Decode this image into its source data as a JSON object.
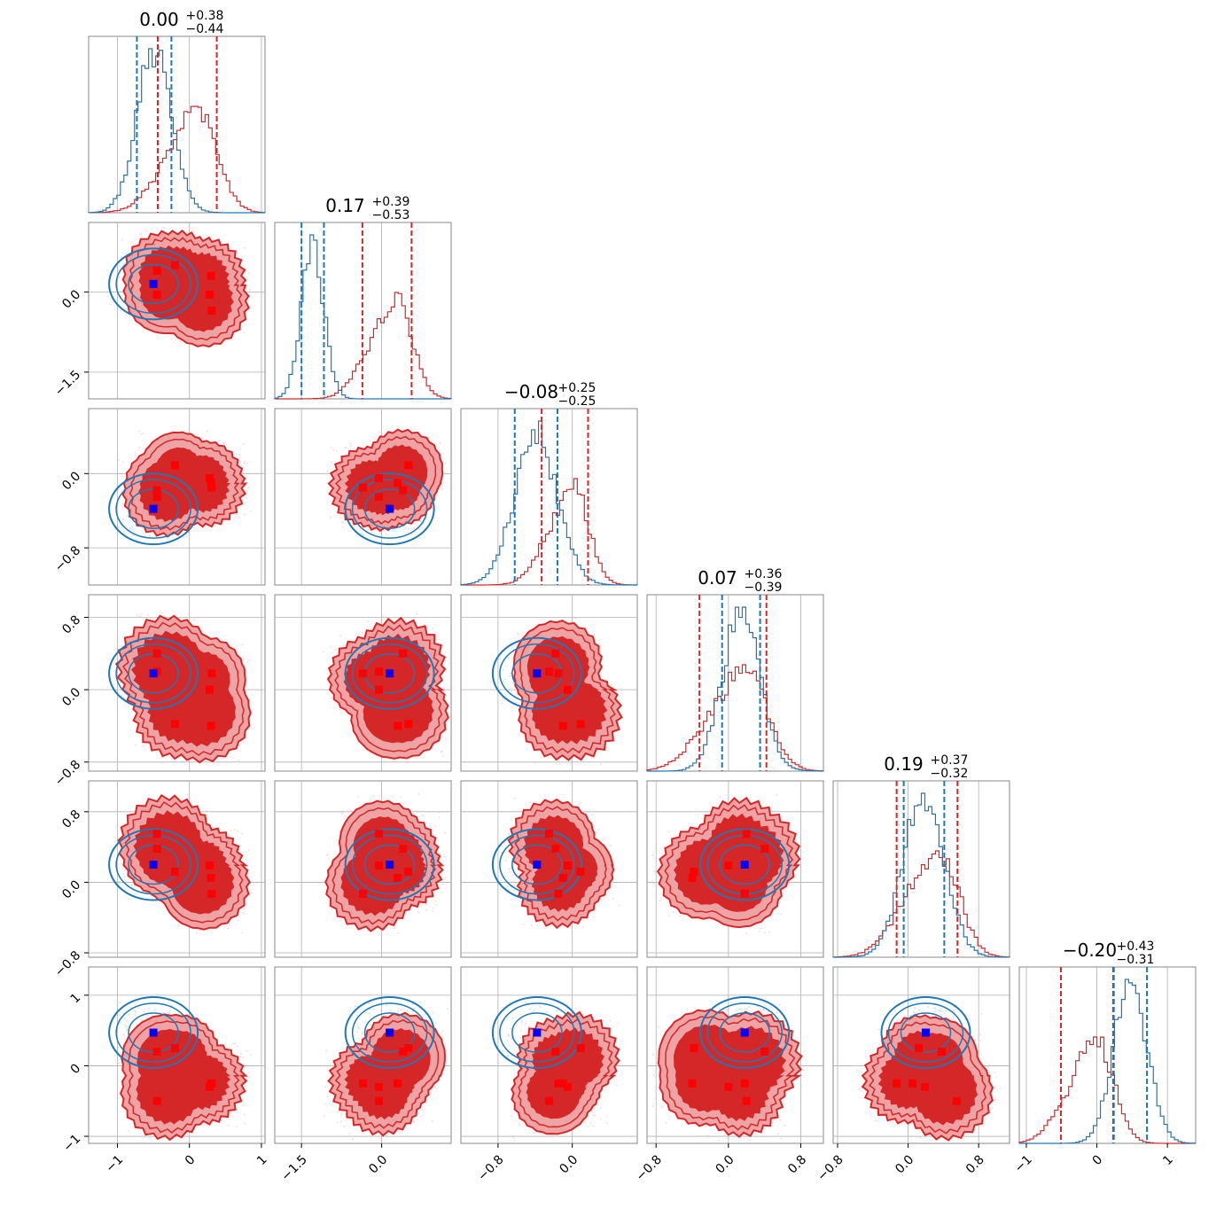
{
  "chart_data": {
    "type": "corner",
    "parameters": [
      {
        "title_main": "0.00",
        "title_plus": "+0.38",
        "title_minus": "−0.44",
        "range": [
          -1.4,
          1.05
        ],
        "ticks": [
          -1,
          0,
          1
        ],
        "tick_labels": [
          "−1",
          "0",
          "1"
        ],
        "red_quantiles": [
          -0.44,
          0.38
        ],
        "blue_quantiles": [
          -0.73,
          -0.25
        ]
      },
      {
        "title_main": "0.17",
        "title_plus": "+0.39",
        "title_minus": "−0.53",
        "range": [
          -2.0,
          1.3
        ],
        "ticks": [
          -1.5,
          0.0
        ],
        "tick_labels": [
          "−1.5",
          "0.0"
        ],
        "red_quantiles": [
          -0.36,
          0.56
        ],
        "blue_quantiles": [
          -1.5,
          -1.08
        ]
      },
      {
        "title_main": "−0.08",
        "title_plus": "+0.25",
        "title_minus": "−0.25",
        "range": [
          -1.2,
          0.7
        ],
        "ticks": [
          -0.8,
          0.0
        ],
        "tick_labels": [
          "−0.8",
          "0.0"
        ],
        "red_quantiles": [
          -0.33,
          0.17
        ],
        "blue_quantiles": [
          -0.62,
          -0.16
        ]
      },
      {
        "title_main": "0.07",
        "title_plus": "+0.36",
        "title_minus": "−0.39",
        "range": [
          -0.9,
          1.05
        ],
        "ticks": [
          -0.8,
          0.0,
          0.8
        ],
        "tick_labels": [
          "−0.8",
          "0.0",
          "0.8"
        ],
        "red_quantiles": [
          -0.32,
          0.42
        ],
        "blue_quantiles": [
          -0.07,
          0.35
        ]
      },
      {
        "title_main": "0.19",
        "title_plus": "+0.37",
        "title_minus": "−0.32",
        "range": [
          -0.85,
          1.15
        ],
        "ticks": [
          -0.8,
          0.0,
          0.8
        ],
        "tick_labels": [
          "−0.8",
          "0.0",
          "0.8"
        ],
        "red_quantiles": [
          -0.13,
          0.56
        ],
        "blue_quantiles": [
          -0.05,
          0.41
        ]
      },
      {
        "title_main": "−0.20",
        "title_plus": "+0.43",
        "title_minus": "−0.31",
        "range": [
          -1.1,
          1.4
        ],
        "ticks": [
          -1,
          0,
          1
        ],
        "tick_labels": [
          "−1",
          "0",
          "1"
        ],
        "red_quantiles": [
          -0.51,
          0.23
        ],
        "blue_quantiles": [
          0.24,
          0.71
        ]
      }
    ],
    "red_modes": [
      [
        -0.45,
        0.4
      ],
      [
        -0.15,
        0.5
      ],
      [
        0.3,
        -0.05
      ],
      [
        0.32,
        -0.35
      ]
    ],
    "blue_center": [
      -0.5,
      0.15,
      -0.38,
      0.18,
      0.2,
      0.47
    ],
    "red_points": [
      [
        -0.45,
        0.4,
        -0.18,
        0.4,
        0.38,
        0.2
      ],
      [
        -0.2,
        0.5,
        0.09,
        -0.38,
        0.12,
        0.25
      ],
      [
        0.28,
        -0.05,
        -0.05,
        0.0,
        0.19,
        -0.3
      ],
      [
        0.31,
        -0.35,
        -0.15,
        0.18,
        -0.13,
        -0.25
      ],
      [
        -0.45,
        -0.05,
        -0.25,
        0.2,
        0.55,
        -0.5
      ],
      [
        0.3,
        0.3,
        -0.1,
        -0.4,
        0.05,
        -0.25
      ]
    ],
    "colors": {
      "red": "#d62728",
      "red_light": "#eea3a4",
      "red_mid": "#e55a5b",
      "blue": "#1f77b4",
      "blue_marker": "#0000ff",
      "grid": "#b0b0b0"
    },
    "grid": true
  }
}
